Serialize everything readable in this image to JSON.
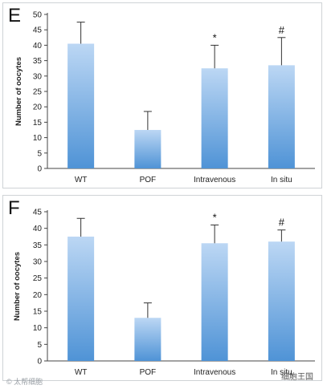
{
  "chart_data": [
    {
      "panel": "E",
      "type": "bar",
      "categories": [
        "WT",
        "POF",
        "Intravenous",
        "In situ"
      ],
      "values": [
        40.5,
        12.5,
        32.5,
        33.5
      ],
      "errors": [
        7,
        6,
        7.5,
        9
      ],
      "annotations": [
        "",
        "",
        "*",
        "#"
      ],
      "ylabel": "Number of oocytes",
      "ylim": [
        0,
        50
      ],
      "yticks": [
        0,
        5,
        10,
        15,
        20,
        25,
        30,
        35,
        40,
        45,
        50
      ]
    },
    {
      "panel": "F",
      "type": "bar",
      "categories": [
        "WT",
        "POF",
        "Intravenous",
        "In situ"
      ],
      "values": [
        37.5,
        13,
        35.5,
        36
      ],
      "errors": [
        5.5,
        4.5,
        5.5,
        3.5
      ],
      "annotations": [
        "",
        "",
        "*",
        "#"
      ],
      "ylabel": "Number of oocytes",
      "ylim": [
        0,
        45
      ],
      "yticks": [
        0,
        5,
        10,
        15,
        20,
        25,
        30,
        35,
        40,
        45
      ]
    }
  ],
  "colors": {
    "bar_top": "#bcd7f4",
    "bar_bottom": "#4f93d6",
    "axis": "#444444"
  },
  "watermarks": {
    "left": "© 太帮细胞",
    "right": "细胞王国"
  }
}
